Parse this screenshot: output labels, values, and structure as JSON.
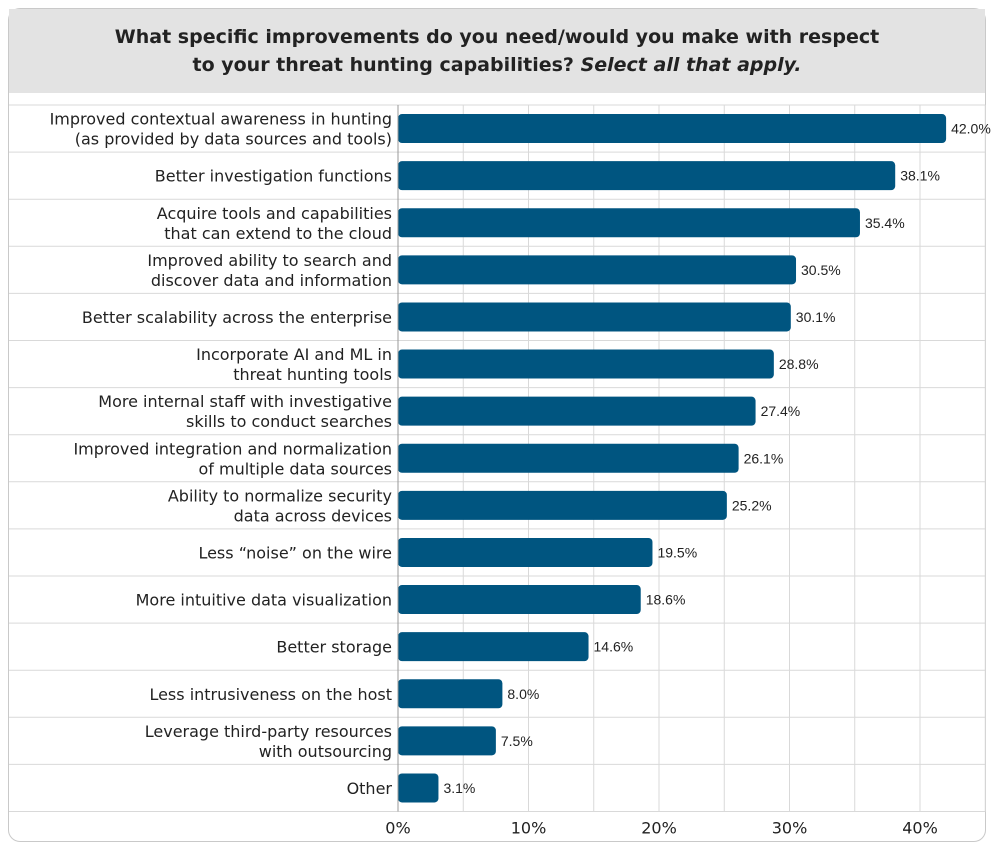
{
  "header": {
    "title_line1": "What specific improvements do you need/would you make with respect",
    "title_line2": "to your threat hunting capabilities?",
    "title_italic": "Select all that apply."
  },
  "colors": {
    "bar": "#005580",
    "grid": "#d9d9d9",
    "header_bg": "#e3e3e3"
  },
  "chart_data": {
    "type": "bar",
    "orientation": "horizontal",
    "title": "What specific improvements do you need/would you make with respect to your threat hunting capabilities? Select all that apply.",
    "categories": [
      [
        "Improved contextual awareness in hunting",
        "(as provided by data sources and tools)"
      ],
      [
        "Better investigation functions"
      ],
      [
        "Acquire tools and capabilities",
        "that can extend to the cloud"
      ],
      [
        "Improved ability to search and",
        "discover data and information"
      ],
      [
        "Better scalability across the enterprise"
      ],
      [
        "Incorporate AI and ML in",
        "threat hunting tools"
      ],
      [
        "More internal staff with investigative",
        "skills to conduct searches"
      ],
      [
        "Improved integration and normalization",
        "of multiple data sources"
      ],
      [
        "Ability to normalize security",
        "data across devices"
      ],
      [
        "Less “noise” on the wire"
      ],
      [
        "More intuitive data visualization"
      ],
      [
        "Better storage"
      ],
      [
        "Less intrusiveness on the host"
      ],
      [
        "Leverage third-party resources",
        "with outsourcing"
      ],
      [
        "Other"
      ]
    ],
    "values": [
      42.0,
      38.1,
      35.4,
      30.5,
      30.1,
      28.8,
      27.4,
      26.1,
      25.2,
      19.5,
      18.6,
      14.6,
      8.0,
      7.5,
      3.1
    ],
    "value_labels": [
      "42.0%",
      "38.1%",
      "35.4%",
      "30.5%",
      "30.1%",
      "28.8%",
      "27.4%",
      "26.1%",
      "25.2%",
      "19.5%",
      "18.6%",
      "14.6%",
      "8.0%",
      "7.5%",
      "3.1%"
    ],
    "xlim": [
      0,
      45
    ],
    "xticks": [
      0,
      10,
      20,
      30,
      40
    ],
    "xtick_labels": [
      "0%",
      "10%",
      "20%",
      "30%",
      "40%"
    ],
    "grid": true,
    "legend": "none"
  }
}
